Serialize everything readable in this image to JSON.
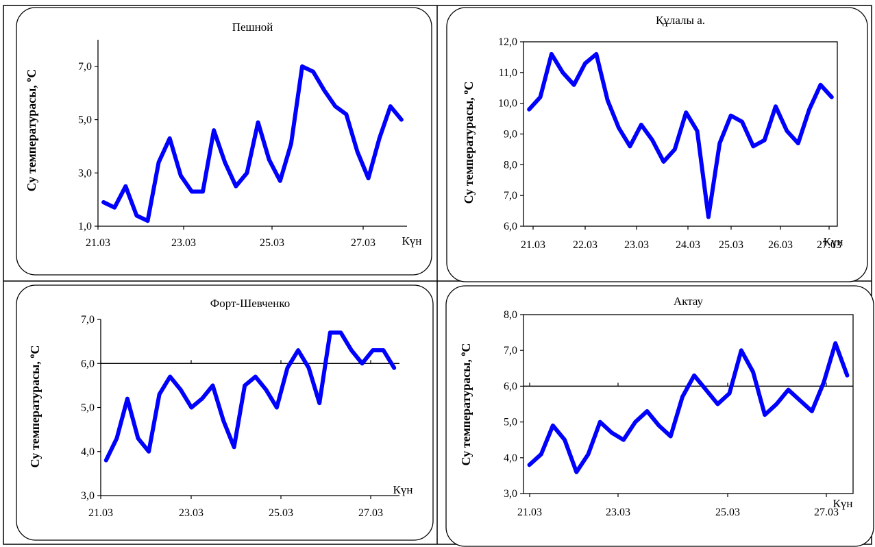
{
  "line_color": "#0000FF",
  "chart_data": [
    {
      "type": "line",
      "title": "Пешной",
      "ylabel": "Су температурасы,",
      "ylabel_unit_sup": "o",
      "ylabel_unit": "C",
      "xlabel": "Күн",
      "ylim": [
        1.0,
        8.0
      ],
      "y_ticks": [
        "1,0",
        "3,0",
        "5,0",
        "7,0"
      ],
      "x_ticks": [
        "21.03",
        "23.03",
        "25.03",
        "27.03"
      ],
      "series": [
        {
          "values": [
            1.9,
            1.7,
            2.5,
            1.4,
            1.2,
            3.4,
            4.3,
            2.9,
            2.3,
            2.3,
            4.6,
            3.4,
            2.5,
            3.0,
            4.9,
            3.5,
            2.7,
            4.1,
            7.0,
            6.8,
            6.1,
            5.5,
            5.2,
            3.8,
            2.8,
            4.3,
            5.5,
            5.0
          ]
        }
      ]
    },
    {
      "type": "line",
      "title": "Құлалы а.",
      "ylabel": "Су температурасы,",
      "ylabel_unit_sup": "o",
      "ylabel_unit": "C",
      "xlabel": "Күн",
      "ylim": [
        6.0,
        12.0
      ],
      "y_ticks": [
        "6,0",
        "7,0",
        "8,0",
        "9,0",
        "10,0",
        "11,0",
        "12,0"
      ],
      "x_ticks": [
        "21.03",
        "22.03",
        "23.03",
        "24.03",
        "25.03",
        "26.03",
        "27.03"
      ],
      "series": [
        {
          "values": [
            9.8,
            10.2,
            11.6,
            11.0,
            10.6,
            11.3,
            11.6,
            10.1,
            9.2,
            8.6,
            9.3,
            8.8,
            8.1,
            8.5,
            9.7,
            9.1,
            6.3,
            8.7,
            9.6,
            9.4,
            8.6,
            8.8,
            9.9,
            9.1,
            8.7,
            9.8,
            10.6,
            10.2
          ]
        }
      ]
    },
    {
      "type": "line",
      "title": "Форт-Шевченко",
      "ylabel": "Су температурасы,",
      "ylabel_unit_sup": "o",
      "ylabel_unit": "C",
      "xlabel": "Күн",
      "ylim": [
        3.0,
        7.0
      ],
      "y_ticks": [
        "3,0",
        "4,0",
        "5,0",
        "6,0",
        "7,0"
      ],
      "x_ticks": [
        "21.03",
        "23.03",
        "25.03",
        "27.03"
      ],
      "series": [
        {
          "values": [
            3.8,
            4.3,
            5.2,
            4.3,
            4.0,
            5.3,
            5.7,
            5.4,
            5.0,
            5.2,
            5.5,
            4.7,
            4.1,
            5.5,
            5.7,
            5.4,
            5.0,
            5.9,
            6.3,
            5.9,
            5.1,
            6.7,
            6.7,
            6.3,
            6.0,
            6.3,
            6.3,
            5.9
          ]
        }
      ]
    },
    {
      "type": "line",
      "title": "Актау",
      "ylabel": "Су температурасы,",
      "ylabel_unit_sup": "o",
      "ylabel_unit": "C",
      "xlabel": "Күн",
      "ylim": [
        3.0,
        8.0
      ],
      "y_ticks": [
        "3,0",
        "4,0",
        "5,0",
        "6,0",
        "7,0",
        "8,0"
      ],
      "x_ticks": [
        "21.03",
        "23.03",
        "25.03",
        "27.03"
      ],
      "series": [
        {
          "values": [
            3.8,
            4.1,
            4.9,
            4.5,
            3.6,
            4.1,
            5.0,
            4.7,
            4.5,
            5.0,
            5.3,
            4.9,
            4.6,
            5.7,
            6.3,
            5.9,
            5.5,
            5.8,
            7.0,
            6.4,
            5.2,
            5.5,
            5.9,
            5.6,
            5.3,
            6.1,
            7.2,
            6.3
          ]
        }
      ]
    }
  ]
}
